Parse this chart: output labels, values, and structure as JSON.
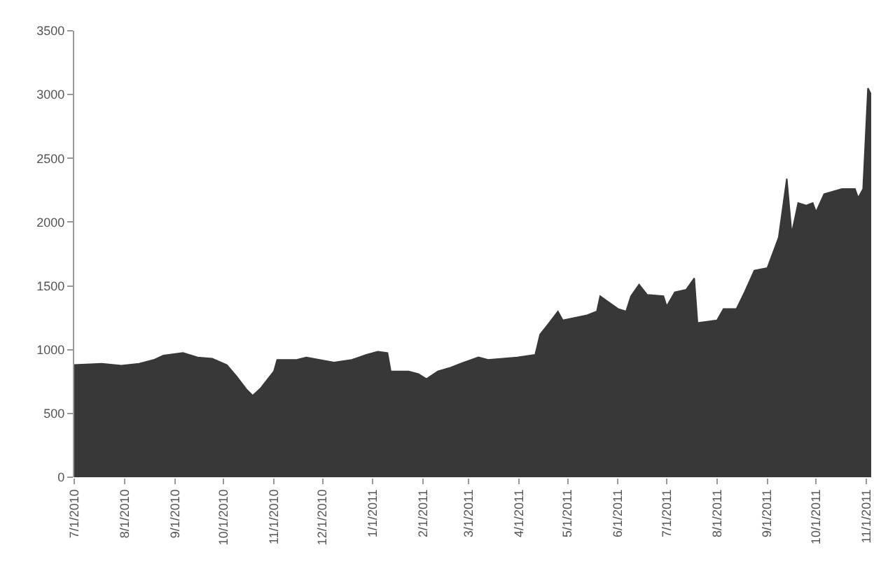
{
  "chart_data": {
    "type": "area",
    "x": [
      "2010-07-01",
      "2010-07-18",
      "2010-07-30",
      "2010-08-10",
      "2010-08-19",
      "2010-08-25",
      "2010-09-06",
      "2010-09-15",
      "2010-09-24",
      "2010-10-03",
      "2010-10-09",
      "2010-10-15",
      "2010-10-19",
      "2010-10-24",
      "2010-11-01",
      "2010-11-03",
      "2010-11-15",
      "2010-11-21",
      "2010-12-08",
      "2010-12-19",
      "2010-12-28",
      "2011-01-04",
      "2011-01-10",
      "2011-01-12",
      "2011-01-23",
      "2011-01-29",
      "2011-02-03",
      "2011-02-10",
      "2011-02-18",
      "2011-02-24",
      "2011-03-07",
      "2011-03-13",
      "2011-03-31",
      "2011-04-11",
      "2011-04-14",
      "2011-04-19",
      "2011-04-25",
      "2011-04-28",
      "2011-05-13",
      "2011-05-19",
      "2011-05-21",
      "2011-06-01",
      "2011-06-06",
      "2011-06-09",
      "2011-06-14",
      "2011-06-19",
      "2011-06-29",
      "2011-07-01",
      "2011-07-06",
      "2011-07-13",
      "2011-07-18",
      "2011-07-20",
      "2011-08-01",
      "2011-08-05",
      "2011-08-13",
      "2011-08-18",
      "2011-08-24",
      "2011-09-01",
      "2011-09-08",
      "2011-09-13",
      "2011-09-16",
      "2011-09-20",
      "2011-09-25",
      "2011-09-29",
      "2011-10-01",
      "2011-10-06",
      "2011-10-17",
      "2011-10-25",
      "2011-10-27",
      "2011-10-30",
      "2011-11-02",
      "2011-11-04"
    ],
    "series": [
      {
        "color": "#383838",
        "values": [
          880,
          890,
          875,
          890,
          920,
          955,
          975,
          940,
          930,
          880,
          790,
          690,
          640,
          700,
          830,
          920,
          920,
          940,
          900,
          920,
          960,
          985,
          975,
          830,
          830,
          810,
          770,
          830,
          860,
          890,
          940,
          920,
          940,
          960,
          1120,
          1200,
          1300,
          1230,
          1270,
          1300,
          1420,
          1320,
          1300,
          1420,
          1510,
          1430,
          1420,
          1340,
          1450,
          1470,
          1560,
          1210,
          1230,
          1320,
          1320,
          1450,
          1620,
          1640,
          1880,
          2340,
          1910,
          2150,
          2130,
          2150,
          2080,
          2220,
          2260,
          2260,
          2190,
          2260,
          3050,
          3000
        ]
      }
    ],
    "xlim": [
      "2010-07-01",
      "2011-11-04"
    ],
    "xticks": [
      {
        "value": "2010-07-01",
        "label": "7/1/2010"
      },
      {
        "value": "2010-08-01",
        "label": "8/1/2010"
      },
      {
        "value": "2010-09-01",
        "label": "9/1/2010"
      },
      {
        "value": "2010-10-01",
        "label": "10/1/2010"
      },
      {
        "value": "2010-11-01",
        "label": "11/1/2010"
      },
      {
        "value": "2010-12-01",
        "label": "12/1/2010"
      },
      {
        "value": "2011-01-01",
        "label": "1/1/2011"
      },
      {
        "value": "2011-02-01",
        "label": "2/1/2011"
      },
      {
        "value": "2011-03-01",
        "label": "3/1/2011"
      },
      {
        "value": "2011-04-01",
        "label": "4/1/2011"
      },
      {
        "value": "2011-05-01",
        "label": "5/1/2011"
      },
      {
        "value": "2011-06-01",
        "label": "6/1/2011"
      },
      {
        "value": "2011-07-01",
        "label": "7/1/2011"
      },
      {
        "value": "2011-08-01",
        "label": "8/1/2011"
      },
      {
        "value": "2011-09-01",
        "label": "9/1/2011"
      },
      {
        "value": "2011-10-01",
        "label": "10/1/2011"
      },
      {
        "value": "2011-11-01",
        "label": "11/1/2011"
      }
    ],
    "ylim": [
      0,
      3500
    ],
    "yticks": [
      0,
      500,
      1000,
      1500,
      2000,
      2500,
      3000,
      3500
    ]
  }
}
